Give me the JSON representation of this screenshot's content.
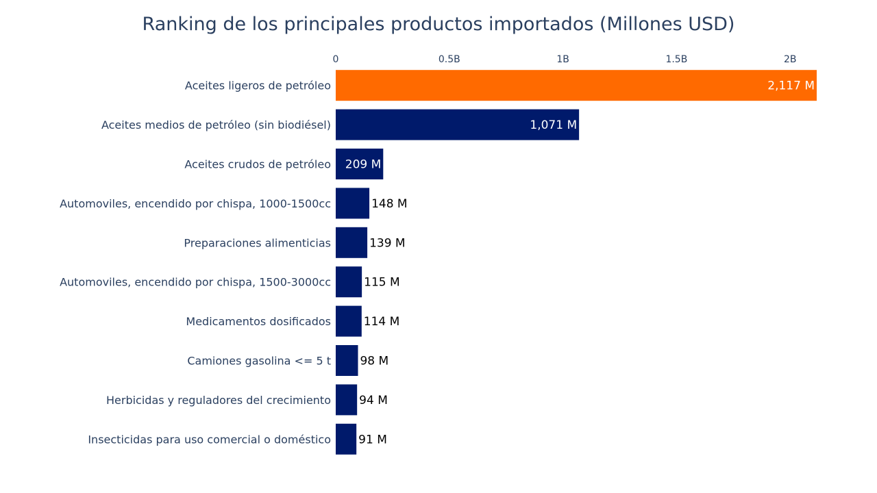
{
  "chart_data": {
    "type": "bar",
    "orientation": "horizontal",
    "title": "Ranking de los principales productos importados (Millones USD)",
    "xlabel": "",
    "ylabel": "",
    "x_axis_position": "top",
    "xlim": [
      0,
      2117
    ],
    "x_ticks": [
      {
        "value": 0,
        "label": "0"
      },
      {
        "value": 500,
        "label": "0.5B"
      },
      {
        "value": 1000,
        "label": "1B"
      },
      {
        "value": 1500,
        "label": "1.5B"
      },
      {
        "value": 2000,
        "label": "2B"
      }
    ],
    "grid": false,
    "legend": "none",
    "colors": {
      "highlight": "#ff6a00",
      "default": "#001a6b",
      "label_inside": "#ffffff",
      "label_outside": "#000000",
      "text": "#2a3f5f"
    },
    "categories": [
      "Aceites ligeros de petróleo",
      "Aceites medios de petróleo (sin biodiésel)",
      "Aceites crudos de petróleo",
      "Automoviles, encendido por chispa, 1000-1500cc",
      "Preparaciones alimenticias",
      "Automoviles, encendido por chispa, 1500-3000cc",
      "Medicamentos dosificados",
      "Camiones gasolina <= 5 t",
      "Herbicidas y reguladores del crecimiento",
      "Insecticidas para uso comercial o doméstico"
    ],
    "values": [
      2117,
      1071,
      209,
      148,
      139,
      115,
      114,
      98,
      94,
      91
    ],
    "data_labels": [
      "2,117 M",
      "1,071 M",
      "209 M",
      "148 M",
      "139 M",
      "115 M",
      "114 M",
      "98 M",
      "94 M",
      "91 M"
    ],
    "highlight_index": 0
  }
}
